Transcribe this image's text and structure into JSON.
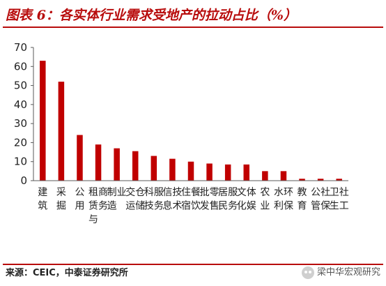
{
  "title": "图表 6：各实体行业需求受地产的拉动占比（%）",
  "source": "来源：CEIC，中泰证券研究所",
  "watermark": "梁中华宏观研究",
  "colors": {
    "bar": "#c00000",
    "title": "#b80c0c",
    "axis": "#595959"
  },
  "chart_data": {
    "type": "bar",
    "title": "图表 6：各实体行业需求受地产的拉动占比（%）",
    "xlabel": "",
    "ylabel": "",
    "ylim": [
      0,
      70
    ],
    "yticks": [
      0,
      10,
      20,
      30,
      40,
      50,
      60,
      70
    ],
    "grid": false,
    "legend": "none",
    "categories": [
      "建筑",
      "采掘",
      "公用",
      "租赁与商务",
      "制造业",
      "交运仓储",
      "科技服务",
      "信息技术",
      "住宿餐饮",
      "批发零售",
      "居民服务",
      "文化体娱",
      "农业",
      "水利环保",
      "教育",
      "公管社保",
      "卫生社工"
    ],
    "values": [
      63,
      52,
      24,
      19,
      17,
      15.5,
      13,
      11.5,
      10,
      9,
      8.5,
      8.5,
      5,
      5,
      1,
      1,
      1
    ]
  }
}
